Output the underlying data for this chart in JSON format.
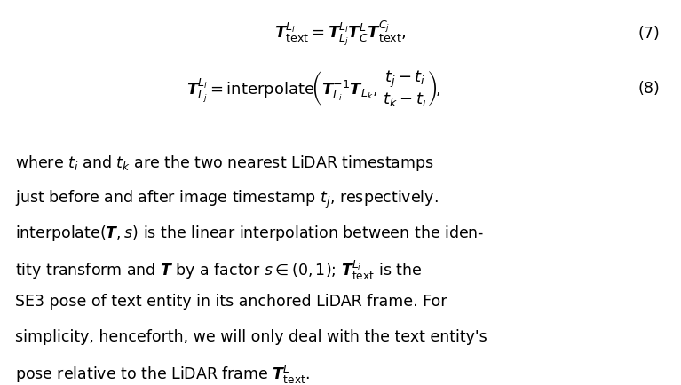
{
  "background_color": "#ffffff",
  "text_color": "#000000",
  "eq1": "$\\boldsymbol{T}_{\\text{text}}^{L_i} = \\boldsymbol{T}_{L_j}^{L_i}\\boldsymbol{T}_{C}^{L}\\boldsymbol{T}_{\\text{text}}^{C_j},$",
  "eq1_number": "(7)",
  "eq2": "$\\boldsymbol{T}_{L_j}^{L_i} = \\text{interpolate}\\left(\\boldsymbol{T}_{L_i}^{-1}\\boldsymbol{T}_{L_k}, \\dfrac{t_j - t_i}{t_k - t_i}\\right),$",
  "eq2_number": "(8)",
  "body_lines": [
    "where $t_i$ and $t_k$ are the two nearest LiDAR timestamps",
    "just before and after image timestamp $t_j$, respectively.",
    "interpolate$(\\boldsymbol{T}, s)$ is the linear interpolation between the iden-",
    "tity transform and $\\boldsymbol{T}$ by a factor $s \\in (0,1)$; $\\boldsymbol{T}_{\\text{text}}^{L_i}$ is the",
    "SE3 pose of text entity in its anchored LiDAR frame. For",
    "simplicity, henceforth, we will only deal with the text entity's",
    "pose relative to the LiDAR frame $\\boldsymbol{T}_{\\text{text}}^{L}$."
  ],
  "fig_width": 7.67,
  "fig_height": 4.35,
  "dpi": 100
}
